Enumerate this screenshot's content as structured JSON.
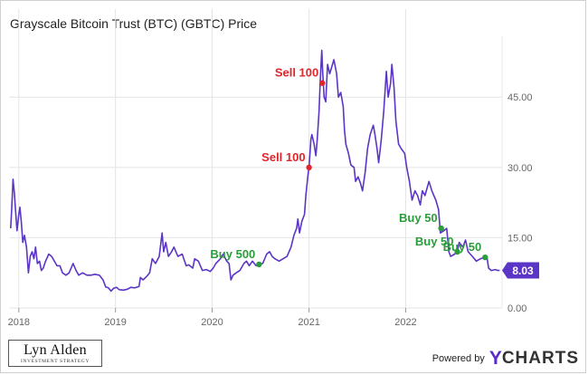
{
  "title": "Grayscale Bitcoin Trust (BTC) (GBTC) Price",
  "branding": {
    "logo_name": "Lyn Alden",
    "logo_tagline": "INVESTMENT STRATEGY",
    "powered_by": "Powered by",
    "ycharts_y": "Y",
    "ycharts_rest": "CHARTS"
  },
  "colors": {
    "line": "#5b35c5",
    "sell": "#e0262b",
    "buy": "#2a9d3a",
    "grid": "#e4e4e4",
    "last_value_tag": "#5b35c5"
  },
  "chart_data": {
    "type": "line",
    "title": "Grayscale Bitcoin Trust (BTC) (GBTC) Price",
    "xlabel": "",
    "ylabel": "",
    "grid": true,
    "y_axis_side": "right",
    "xlim": [
      "2017-11-25",
      "2022-12-31"
    ],
    "ylim": [
      0,
      58
    ],
    "x_ticks": [
      "2018",
      "2019",
      "2020",
      "2021",
      "2022"
    ],
    "y_ticks": [
      "0.00",
      "15.00",
      "30.00",
      "45.00"
    ],
    "y_tick_values": [
      0,
      15,
      30,
      45
    ],
    "series": [
      {
        "points": [
          [
            "2017-12-01",
            17.0
          ],
          [
            "2017-12-05",
            21.0
          ],
          [
            "2017-12-10",
            27.5
          ],
          [
            "2017-12-15",
            24.5
          ],
          [
            "2017-12-20",
            20.5
          ],
          [
            "2017-12-25",
            16.5
          ],
          [
            "2018-01-01",
            20.0
          ],
          [
            "2018-01-05",
            21.5
          ],
          [
            "2018-01-10",
            18.5
          ],
          [
            "2018-01-16",
            14.0
          ],
          [
            "2018-01-22",
            15.5
          ],
          [
            "2018-01-30",
            13.0
          ],
          [
            "2018-02-06",
            7.5
          ],
          [
            "2018-02-13",
            11.0
          ],
          [
            "2018-02-20",
            12.0
          ],
          [
            "2018-02-27",
            10.5
          ],
          [
            "2018-03-05",
            13.0
          ],
          [
            "2018-03-12",
            9.5
          ],
          [
            "2018-03-20",
            10.0
          ],
          [
            "2018-03-27",
            8.0
          ],
          [
            "2018-04-03",
            8.5
          ],
          [
            "2018-04-12",
            10.0
          ],
          [
            "2018-04-24",
            11.5
          ],
          [
            "2018-05-05",
            11.0
          ],
          [
            "2018-05-15",
            10.0
          ],
          [
            "2018-05-25",
            9.0
          ],
          [
            "2018-06-05",
            9.0
          ],
          [
            "2018-06-15",
            7.5
          ],
          [
            "2018-06-28",
            7.0
          ],
          [
            "2018-07-10",
            7.5
          ],
          [
            "2018-07-25",
            9.5
          ],
          [
            "2018-08-05",
            8.0
          ],
          [
            "2018-08-15",
            7.0
          ],
          [
            "2018-08-30",
            7.5
          ],
          [
            "2018-09-15",
            7.0
          ],
          [
            "2018-10-01",
            7.0
          ],
          [
            "2018-10-15",
            7.2
          ],
          [
            "2018-11-01",
            7.0
          ],
          [
            "2018-11-15",
            6.0
          ],
          [
            "2018-11-25",
            4.5
          ],
          [
            "2018-12-05",
            4.3
          ],
          [
            "2018-12-15",
            3.6
          ],
          [
            "2018-12-25",
            4.2
          ],
          [
            "2019-01-05",
            4.4
          ],
          [
            "2019-01-15",
            3.9
          ],
          [
            "2019-01-31",
            3.8
          ],
          [
            "2019-02-15",
            4.0
          ],
          [
            "2019-02-28",
            4.4
          ],
          [
            "2019-03-15",
            4.3
          ],
          [
            "2019-03-31",
            4.6
          ],
          [
            "2019-04-05",
            6.5
          ],
          [
            "2019-04-15",
            6.0
          ],
          [
            "2019-04-30",
            6.8
          ],
          [
            "2019-05-10",
            7.5
          ],
          [
            "2019-05-20",
            10.5
          ],
          [
            "2019-06-01",
            9.5
          ],
          [
            "2019-06-15",
            11.0
          ],
          [
            "2019-06-26",
            16.0
          ],
          [
            "2019-07-02",
            12.0
          ],
          [
            "2019-07-10",
            14.0
          ],
          [
            "2019-07-20",
            11.0
          ],
          [
            "2019-08-01",
            12.0
          ],
          [
            "2019-08-10",
            13.0
          ],
          [
            "2019-08-25",
            11.0
          ],
          [
            "2019-09-10",
            11.5
          ],
          [
            "2019-09-25",
            9.0
          ],
          [
            "2019-10-05",
            9.2
          ],
          [
            "2019-10-20",
            8.5
          ],
          [
            "2019-10-27",
            10.5
          ],
          [
            "2019-11-10",
            10.0
          ],
          [
            "2019-11-25",
            8.0
          ],
          [
            "2019-12-10",
            8.2
          ],
          [
            "2019-12-25",
            7.8
          ],
          [
            "2020-01-05",
            8.5
          ],
          [
            "2020-01-15",
            9.5
          ],
          [
            "2020-02-01",
            10.5
          ],
          [
            "2020-02-12",
            11.5
          ],
          [
            "2020-02-25",
            10.0
          ],
          [
            "2020-03-05",
            9.5
          ],
          [
            "2020-03-12",
            6.0
          ],
          [
            "2020-03-20",
            7.0
          ],
          [
            "2020-04-01",
            7.5
          ],
          [
            "2020-04-15",
            8.0
          ],
          [
            "2020-04-30",
            9.5
          ],
          [
            "2020-05-10",
            10.0
          ],
          [
            "2020-05-20",
            9.0
          ],
          [
            "2020-06-01",
            10.0
          ],
          [
            "2020-06-15",
            9.0
          ],
          [
            "2020-06-26",
            9.3
          ],
          [
            "2020-07-10",
            9.5
          ],
          [
            "2020-07-25",
            11.5
          ],
          [
            "2020-08-05",
            12.0
          ],
          [
            "2020-08-15",
            11.0
          ],
          [
            "2020-08-25",
            10.5
          ],
          [
            "2020-09-10",
            10.0
          ],
          [
            "2020-09-25",
            10.5
          ],
          [
            "2020-10-10",
            11.0
          ],
          [
            "2020-10-25",
            13.0
          ],
          [
            "2020-11-05",
            15.5
          ],
          [
            "2020-11-15",
            17.0
          ],
          [
            "2020-11-20",
            19.0
          ],
          [
            "2020-11-26",
            16.0
          ],
          [
            "2020-12-05",
            18.5
          ],
          [
            "2020-12-15",
            20.0
          ],
          [
            "2020-12-20",
            24.0
          ],
          [
            "2020-12-28",
            28.5
          ],
          [
            "2021-01-01",
            30.0
          ],
          [
            "2021-01-08",
            36.0
          ],
          [
            "2021-01-12",
            37.0
          ],
          [
            "2021-01-20",
            35.0
          ],
          [
            "2021-01-27",
            32.5
          ],
          [
            "2021-02-01",
            36.0
          ],
          [
            "2021-02-08",
            42.0
          ],
          [
            "2021-02-12",
            48.0
          ],
          [
            "2021-02-18",
            55.0
          ],
          [
            "2021-02-22",
            50.0
          ],
          [
            "2021-02-27",
            45.0
          ],
          [
            "2021-03-05",
            44.0
          ],
          [
            "2021-03-12",
            52.0
          ],
          [
            "2021-03-20",
            50.0
          ],
          [
            "2021-03-28",
            51.5
          ],
          [
            "2021-04-05",
            53.0
          ],
          [
            "2021-04-15",
            50.0
          ],
          [
            "2021-04-22",
            45.0
          ],
          [
            "2021-05-01",
            46.0
          ],
          [
            "2021-05-10",
            43.0
          ],
          [
            "2021-05-15",
            38.0
          ],
          [
            "2021-05-20",
            35.0
          ],
          [
            "2021-05-30",
            33.0
          ],
          [
            "2021-06-08",
            30.5
          ],
          [
            "2021-06-20",
            30.0
          ],
          [
            "2021-06-26",
            27.0
          ],
          [
            "2021-07-05",
            28.0
          ],
          [
            "2021-07-15",
            26.5
          ],
          [
            "2021-07-22",
            25.0
          ],
          [
            "2021-08-01",
            29.0
          ],
          [
            "2021-08-10",
            34.0
          ],
          [
            "2021-08-20",
            37.0
          ],
          [
            "2021-09-01",
            39.0
          ],
          [
            "2021-09-07",
            37.0
          ],
          [
            "2021-09-15",
            34.0
          ],
          [
            "2021-09-21",
            31.0
          ],
          [
            "2021-10-01",
            36.0
          ],
          [
            "2021-10-10",
            42.0
          ],
          [
            "2021-10-20",
            50.5
          ],
          [
            "2021-10-27",
            45.0
          ],
          [
            "2021-11-05",
            48.0
          ],
          [
            "2021-11-10",
            52.0
          ],
          [
            "2021-11-18",
            47.0
          ],
          [
            "2021-11-25",
            40.0
          ],
          [
            "2021-12-05",
            35.0
          ],
          [
            "2021-12-15",
            34.0
          ],
          [
            "2021-12-28",
            33.0
          ],
          [
            "2022-01-05",
            30.0
          ],
          [
            "2022-01-15",
            27.0
          ],
          [
            "2022-01-25",
            23.0
          ],
          [
            "2022-02-05",
            25.0
          ],
          [
            "2022-02-15",
            24.0
          ],
          [
            "2022-02-25",
            22.0
          ],
          [
            "2022-03-05",
            25.0
          ],
          [
            "2022-03-15",
            24.0
          ],
          [
            "2022-03-30",
            27.0
          ],
          [
            "2022-04-10",
            25.0
          ],
          [
            "2022-04-25",
            23.0
          ],
          [
            "2022-05-05",
            21.0
          ],
          [
            "2022-05-12",
            16.0
          ],
          [
            "2022-05-25",
            16.5
          ],
          [
            "2022-06-05",
            17.0
          ],
          [
            "2022-06-13",
            12.0
          ],
          [
            "2022-06-20",
            11.0
          ],
          [
            "2022-07-05",
            11.5
          ],
          [
            "2022-07-15",
            12.0
          ],
          [
            "2022-07-22",
            14.0
          ],
          [
            "2022-08-05",
            13.0
          ],
          [
            "2022-08-15",
            14.5
          ],
          [
            "2022-08-25",
            12.0
          ],
          [
            "2022-09-10",
            11.0
          ],
          [
            "2022-09-25",
            10.0
          ],
          [
            "2022-10-10",
            10.5
          ],
          [
            "2022-10-25",
            10.8
          ],
          [
            "2022-11-05",
            10.5
          ],
          [
            "2022-11-10",
            8.5
          ],
          [
            "2022-11-20",
            8.0
          ],
          [
            "2022-12-05",
            8.2
          ],
          [
            "2022-12-15",
            8.0
          ],
          [
            "2022-12-22",
            8.03
          ]
        ]
      }
    ],
    "annotations": [
      {
        "label": "Sell 100",
        "action": "sell",
        "date": "2021-02-20",
        "value": 48.0
      },
      {
        "label": "Sell 100",
        "action": "sell",
        "date": "2021-01-01",
        "value": 30.0
      },
      {
        "label": "Buy 500",
        "action": "buy",
        "date": "2020-06-26",
        "value": 9.3
      },
      {
        "label": "Buy 50",
        "action": "buy",
        "date": "2022-05-15",
        "value": 17.0
      },
      {
        "label": "Buy 50",
        "action": "buy",
        "date": "2022-07-15",
        "value": 12.0
      },
      {
        "label": "Buy 50",
        "action": "buy",
        "date": "2022-10-28",
        "value": 10.8
      }
    ],
    "last_value": "8.03"
  }
}
